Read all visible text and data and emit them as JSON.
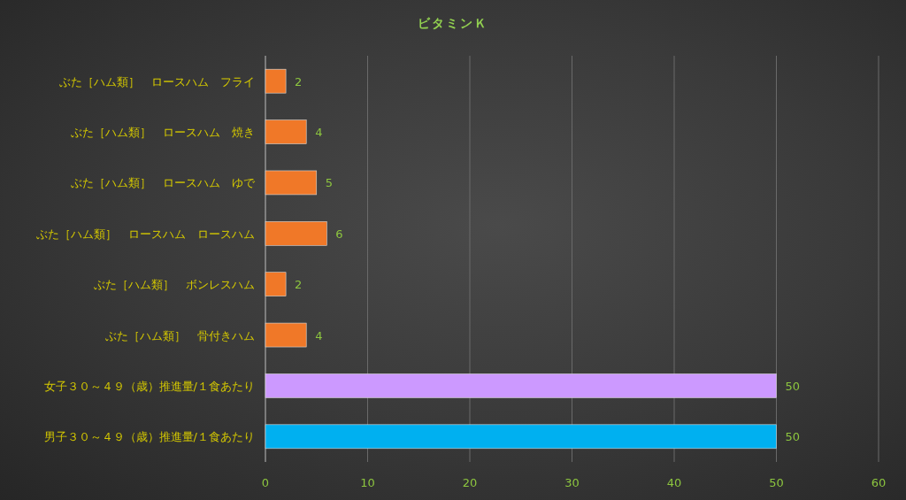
{
  "chart_data": {
    "type": "bar",
    "orientation": "horizontal",
    "title": "ビタミンＫ",
    "categories": [
      "ぶた［ハム類］　ロースハム　フライ",
      "ぶた［ハム類］　ロースハム　焼き",
      "ぶた［ハム類］　ロースハム　ゆで",
      "ぶた［ハム類］　ロースハム　ロースハム",
      "ぶた［ハム類］　ボンレスハム",
      "ぶた［ハム類］　骨付きハム",
      "女子３０～４９（歳）推進量/１食あたり",
      "男子３０～４９（歳）推進量/１食あたり"
    ],
    "values": [
      2,
      4,
      5,
      6,
      2,
      4,
      50,
      50
    ],
    "colors": [
      "#f07828",
      "#f07828",
      "#f07828",
      "#f07828",
      "#f07828",
      "#f07828",
      "#cc99ff",
      "#00b0f0"
    ],
    "xlim": [
      0,
      60
    ],
    "xticks": [
      0,
      10,
      20,
      30,
      40,
      50,
      60
    ],
    "grid": "x",
    "data_labels": true
  }
}
